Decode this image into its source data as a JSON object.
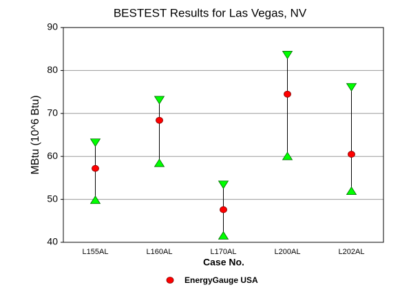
{
  "chart_data": {
    "type": "range-dot",
    "title": "BESTEST Results for Las Vegas, NV",
    "x_label": "Case No.",
    "y_label": "MBtu (10^6 Btu)",
    "categories": [
      "L155AL",
      "L160AL",
      "L170AL",
      "L200AL",
      "L202AL"
    ],
    "series": [
      {
        "name": "EnergyGauge USA",
        "color": "#ff0000",
        "values": [
          57.2,
          68.4,
          47.6,
          74.5,
          60.5
        ]
      }
    ],
    "range": {
      "color": "#00ff00",
      "low": [
        49.9,
        58.5,
        41.6,
        60.1,
        52.0
      ],
      "high": [
        63.2,
        73.1,
        53.4,
        83.6,
        76.1
      ]
    },
    "ylim": [
      40,
      90
    ],
    "yticks": [
      40,
      50,
      60,
      70,
      80,
      90
    ],
    "grid": true
  }
}
